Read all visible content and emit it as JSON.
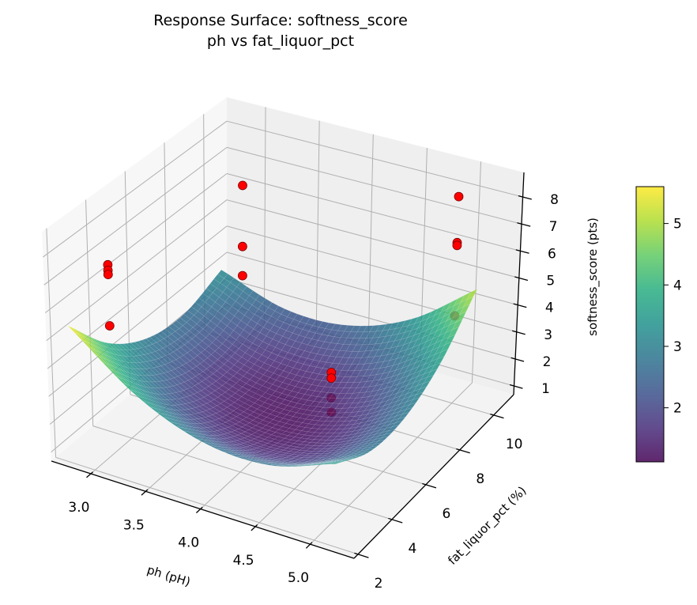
{
  "chart_data": {
    "type": "surface3d",
    "title": [
      "Response Surface: softness_score",
      "ph vs fat_liquor_pct"
    ],
    "colormap": "viridis",
    "x_axis": {
      "label": "ph (pH)",
      "range": [
        2.64,
        5.4
      ],
      "ticks": [
        3.0,
        3.5,
        4.0,
        4.5,
        5.0
      ],
      "tick_labels": [
        "3.0",
        "3.5",
        "4.0",
        "4.5",
        "5.0"
      ]
    },
    "y_axis": {
      "label": "fat_liquor_pct (%)",
      "range": [
        1.765,
        11.18
      ],
      "ticks": [
        2,
        4,
        6,
        8,
        10
      ],
      "tick_labels": [
        "2",
        "4",
        "6",
        "8",
        "10"
      ]
    },
    "z_axis": {
      "label": "softness_score (pts)",
      "range": [
        0.68,
        8.91
      ],
      "ticks": [
        1,
        2,
        3,
        4,
        5,
        6,
        7,
        8
      ],
      "tick_labels": [
        "1",
        "2",
        "3",
        "4",
        "5",
        "6",
        "7",
        "8"
      ]
    },
    "surface": {
      "x": [
        2.8,
        3.4,
        4.0,
        4.6,
        5.2
      ],
      "y": [
        2,
        4,
        6,
        8,
        10
      ],
      "z": [
        [
          5.6,
          3.83,
          2.9,
          2.83,
          3.6
        ],
        [
          3.89,
          2.36,
          1.68,
          1.85,
          2.87
        ],
        [
          2.93,
          1.64,
          1.2,
          1.61,
          2.88
        ],
        [
          2.69,
          1.65,
          1.46,
          2.11,
          3.62
        ],
        [
          3.2,
          2.4,
          2.45,
          3.35,
          5.1
        ]
      ],
      "alpha": 0.85
    },
    "points": {
      "color": "#ff0000",
      "edge_color": "#7a0000",
      "data": [
        [
          3.0,
          3,
          7.5
        ],
        [
          3.0,
          3,
          7.3
        ],
        [
          3.0,
          3,
          7.15
        ],
        [
          3.0,
          3,
          5.3
        ],
        [
          3.0,
          10,
          6.6
        ],
        [
          3.0,
          10,
          4.3
        ],
        [
          3.0,
          10,
          3.2
        ],
        [
          5.0,
          10,
          8.3
        ],
        [
          5.0,
          10,
          6.6
        ],
        [
          5.0,
          10,
          6.5
        ],
        [
          5.0,
          10,
          3.9
        ],
        [
          5.0,
          3,
          6.0
        ],
        [
          5.0,
          3,
          5.8
        ],
        [
          5.0,
          3,
          5.1
        ],
        [
          5.0,
          3,
          4.6
        ]
      ]
    },
    "colorbar": {
      "label": "softness_score (pts)",
      "range": [
        1.12,
        5.6
      ],
      "ticks": [
        2,
        3,
        4,
        5
      ],
      "tick_labels": [
        "2",
        "3",
        "4",
        "5"
      ]
    },
    "grid": true
  }
}
